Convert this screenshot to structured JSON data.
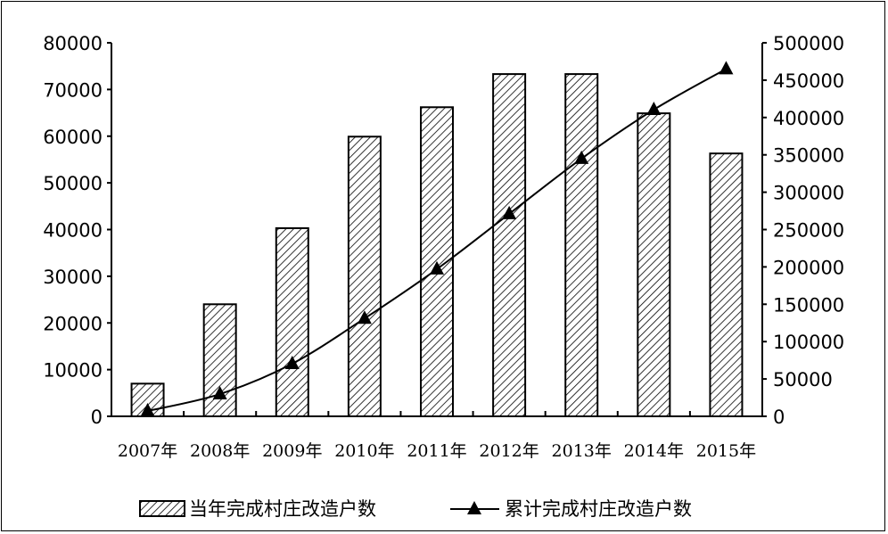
{
  "chart_data": {
    "type": "bar+line",
    "categories": [
      "2007年",
      "2008年",
      "2009年",
      "2010年",
      "2011年",
      "2012年",
      "2013年",
      "2014年",
      "2015年"
    ],
    "series": [
      {
        "name": "当年完成村庄改造户数",
        "type": "bar",
        "axis": "left",
        "pattern": "diagonal-hatch",
        "values": [
          7000,
          24000,
          40300,
          59900,
          66200,
          73300,
          73300,
          64900,
          56300
        ]
      },
      {
        "name": "累计完成村庄改造户数",
        "type": "line",
        "axis": "right",
        "marker": "triangle",
        "values": [
          7200,
          29800,
          70400,
          131000,
          197000,
          271000,
          345000,
          410500,
          465000
        ]
      }
    ],
    "y_left": {
      "range": [
        0,
        80000
      ],
      "ticks": [
        "0",
        "10000",
        "20000",
        "30000",
        "40000",
        "50000",
        "60000",
        "70000",
        "80000"
      ]
    },
    "y_right": {
      "range": [
        0,
        500000
      ],
      "ticks": [
        "0",
        "50000",
        "100000",
        "150000",
        "200000",
        "250000",
        "300000",
        "350000",
        "400000",
        "450000",
        "500000"
      ]
    },
    "grid": false,
    "legend": "bottom",
    "colors": {
      "bar_fill": "#ffffff",
      "hatch": "#000000",
      "line": "#000000"
    }
  }
}
